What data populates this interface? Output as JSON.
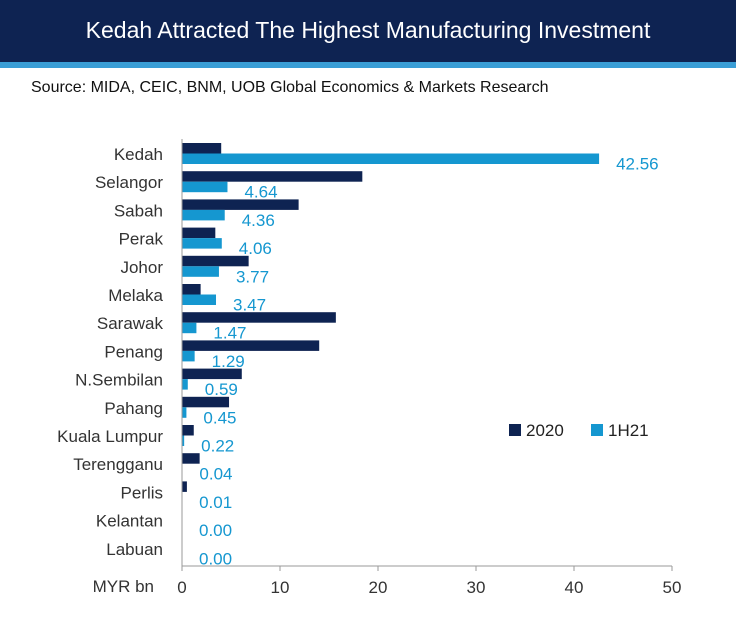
{
  "header": {
    "title": "Kedah Attracted The Highest Manufacturing Investment",
    "source": "Source: MIDA, CEIC, BNM, UOB Global Economics & Markets Research"
  },
  "colors": {
    "header_bg": "#0e2352",
    "accent": "#3a9ed6",
    "series_2020": "#0e2352",
    "series_1h21": "#1597d0"
  },
  "chart_data": {
    "type": "bar",
    "orientation": "horizontal",
    "categories": [
      "Kedah",
      "Selangor",
      "Sabah",
      "Perak",
      "Johor",
      "Melaka",
      "Sarawak",
      "Penang",
      "N.Sembilan",
      "Pahang",
      "Kuala Lumpur",
      "Terengganu",
      "Perlis",
      "Kelantan",
      "Labuan"
    ],
    "series": [
      {
        "name": "2020",
        "values": [
          4.0,
          18.4,
          11.9,
          3.4,
          6.8,
          1.9,
          15.7,
          14.0,
          6.1,
          4.8,
          1.2,
          1.8,
          0.5,
          0.0,
          0.0
        ]
      },
      {
        "name": "1H21",
        "values": [
          42.56,
          4.64,
          4.36,
          4.06,
          3.77,
          3.47,
          1.47,
          1.29,
          0.59,
          0.45,
          0.22,
          0.04,
          0.01,
          0.0,
          0.0
        ],
        "labels": [
          "42.56",
          "4.64",
          "4.36",
          "4.06",
          "3.77",
          "3.47",
          "1.47",
          "1.29",
          "0.59",
          "0.45",
          "0.22",
          "0.04",
          "0.01",
          "0.00",
          "0.00"
        ]
      }
    ],
    "xlabel": "MYR bn",
    "xlim": [
      0,
      50
    ],
    "xticks": [
      "0",
      "10",
      "20",
      "30",
      "40",
      "50"
    ],
    "legend": {
      "position": "right",
      "entries": [
        "2020",
        "1H21"
      ]
    },
    "grid": false
  }
}
